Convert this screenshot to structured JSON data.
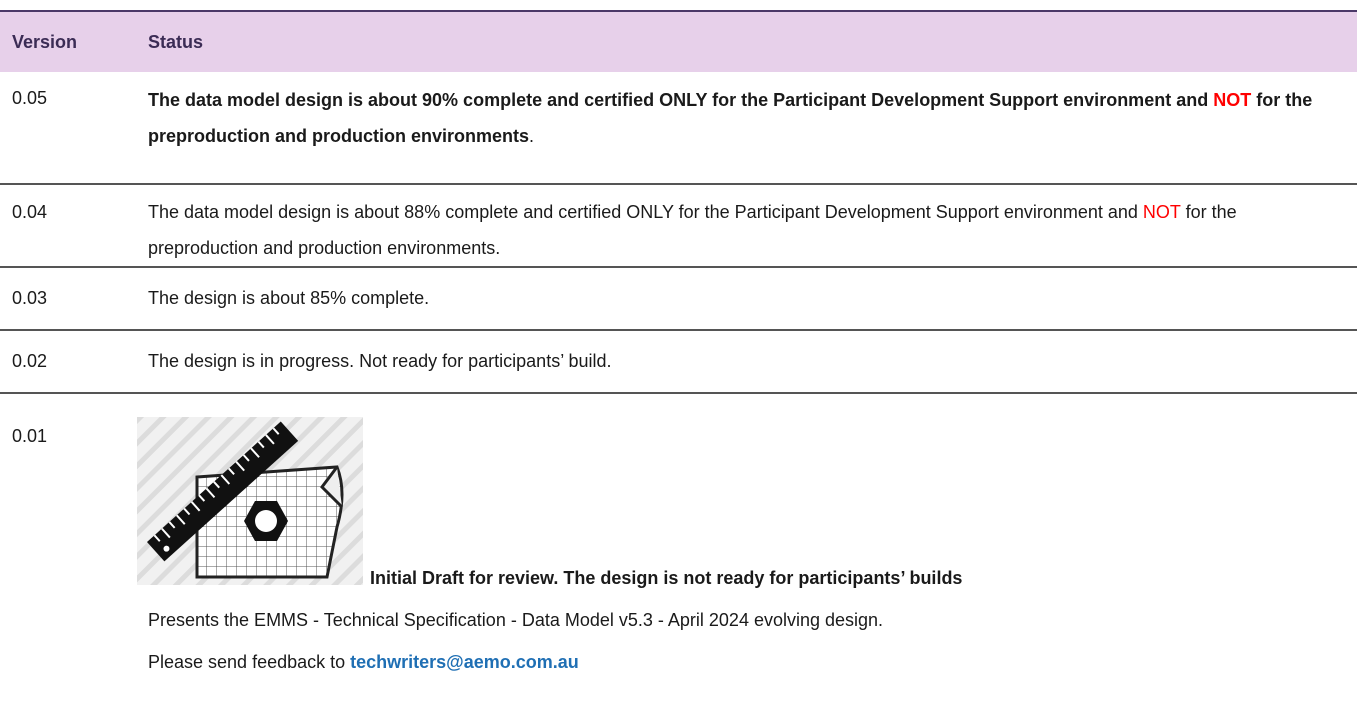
{
  "table": {
    "headers": [
      "Version",
      "Status"
    ],
    "rows": [
      {
        "version": "0.05",
        "status": [
          "The data model design is about 90% complete and certified ONLY for the Participant Development Support environment and ",
          "NOT",
          " for the preproduction and production environments",
          "."
        ]
      },
      {
        "version": "0.04",
        "status": [
          "The data model design is about 88% complete and certified ONLY for the Participant Development Support environment and ",
          "NOT",
          " for the preproduction and production environments."
        ]
      },
      {
        "version": "0.03",
        "status": [
          "The design is about 85% complete."
        ]
      },
      {
        "version": "0.02",
        "status": [
          "The design is in progress. Not ready for participants’ build."
        ]
      },
      {
        "version": "0.01",
        "status": [
          "Initial Draft for review. The design is not ready for participants’ builds",
          "Presents the EMMS - Technical Specification - Data Model v5.3 - April 2024 evolving design.",
          "Please send feedback to ",
          "techwriters@aemo.com.au"
        ]
      }
    ]
  }
}
